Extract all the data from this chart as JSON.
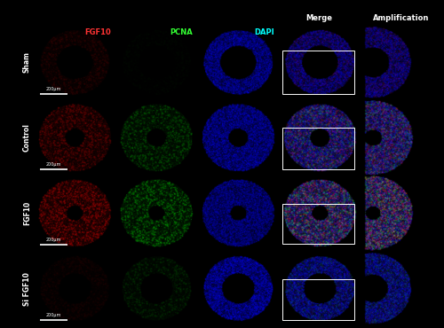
{
  "rows": [
    "Sham",
    "Control",
    "FGF10",
    "Si FGF10"
  ],
  "col_headers": [
    "FGF10",
    "PCNA",
    "DAPI",
    "Merge",
    "Amplification"
  ],
  "col_header_colors": [
    "#ff3333",
    "#33ff33",
    "#00ffff",
    "#ffffff",
    "#ffffff"
  ],
  "row_label_color": "#ffffff",
  "bg_color": "#000000",
  "scale_bar_label": "200μm",
  "figure_width": 5.0,
  "figure_height": 3.7,
  "dpi": 100,
  "row_params": {
    "Sham": {
      "red": 0.18,
      "green": 0.04,
      "blue": 0.55,
      "vessel_inner": 0.22,
      "vessel_outer": 0.42,
      "injury": false
    },
    "Control": {
      "red": 0.4,
      "green": 0.35,
      "blue": 0.55,
      "vessel_inner": 0.12,
      "vessel_outer": 0.44,
      "injury": true
    },
    "FGF10": {
      "red": 0.55,
      "green": 0.5,
      "blue": 0.5,
      "vessel_inner": 0.1,
      "vessel_outer": 0.44,
      "injury": true
    },
    "Si FGF10": {
      "red": 0.1,
      "green": 0.2,
      "blue": 0.6,
      "vessel_inner": 0.2,
      "vessel_outer": 0.42,
      "injury": false
    }
  },
  "rect_params": {
    "Sham": [
      0.05,
      0.08,
      0.88,
      0.58
    ],
    "Control": [
      0.05,
      0.08,
      0.88,
      0.55
    ],
    "FGF10": [
      0.05,
      0.1,
      0.88,
      0.52
    ],
    "Si FGF10": [
      0.05,
      0.08,
      0.88,
      0.55
    ]
  }
}
